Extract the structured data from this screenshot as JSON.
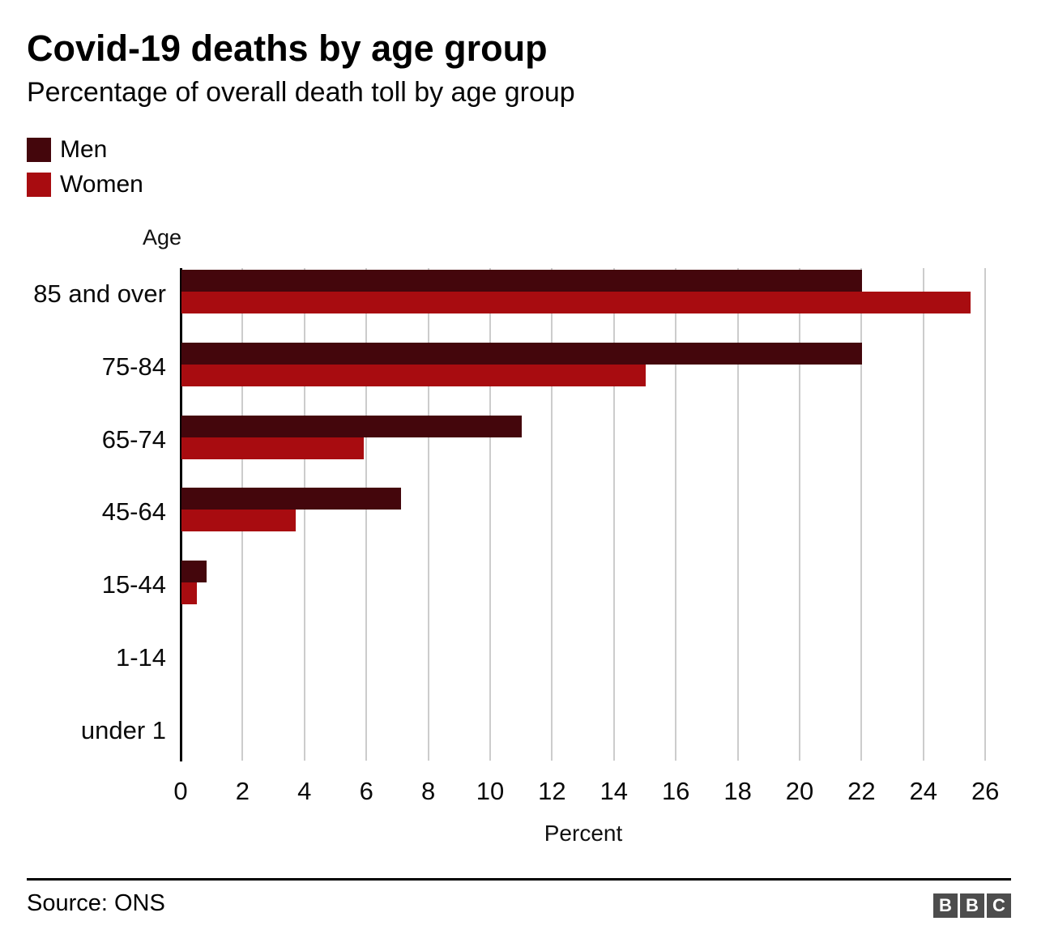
{
  "title": "Covid-19 deaths by age group",
  "subtitle": "Percentage of overall death toll by age group",
  "legend": [
    {
      "label": "Men",
      "color": "#44060c"
    },
    {
      "label": "Women",
      "color": "#a80c10"
    }
  ],
  "source": "Source: ONS",
  "logo": {
    "letters": [
      "B",
      "B",
      "C"
    ],
    "box_color": "#4d4d4d",
    "letter_color": "#ffffff"
  },
  "colors": {
    "men_bar": "#44060c",
    "women_bar": "#a80c10",
    "gridline": "#cccccc",
    "axis": "#000000"
  },
  "chart_data": {
    "type": "bar",
    "orientation": "horizontal",
    "title": "Covid-19 deaths by age group",
    "subtitle": "Percentage of overall death toll by age group",
    "categories": [
      "85 and over",
      "75-84",
      "65-74",
      "45-64",
      "15-44",
      "1-14",
      "under 1"
    ],
    "series": [
      {
        "name": "Men",
        "color": "#44060c",
        "values": [
          22,
          22,
          11,
          7.1,
          0.8,
          0,
          0
        ]
      },
      {
        "name": "Women",
        "color": "#a80c10",
        "values": [
          25.5,
          15,
          5.9,
          3.7,
          0.5,
          0,
          0
        ]
      }
    ],
    "xlabel": "Percent",
    "ylabel": "Age",
    "xlim": [
      0,
      26
    ],
    "xticks": [
      0,
      2,
      4,
      6,
      8,
      10,
      12,
      14,
      16,
      18,
      20,
      22,
      24,
      26
    ],
    "grid": true,
    "legend_position": "top-left"
  }
}
